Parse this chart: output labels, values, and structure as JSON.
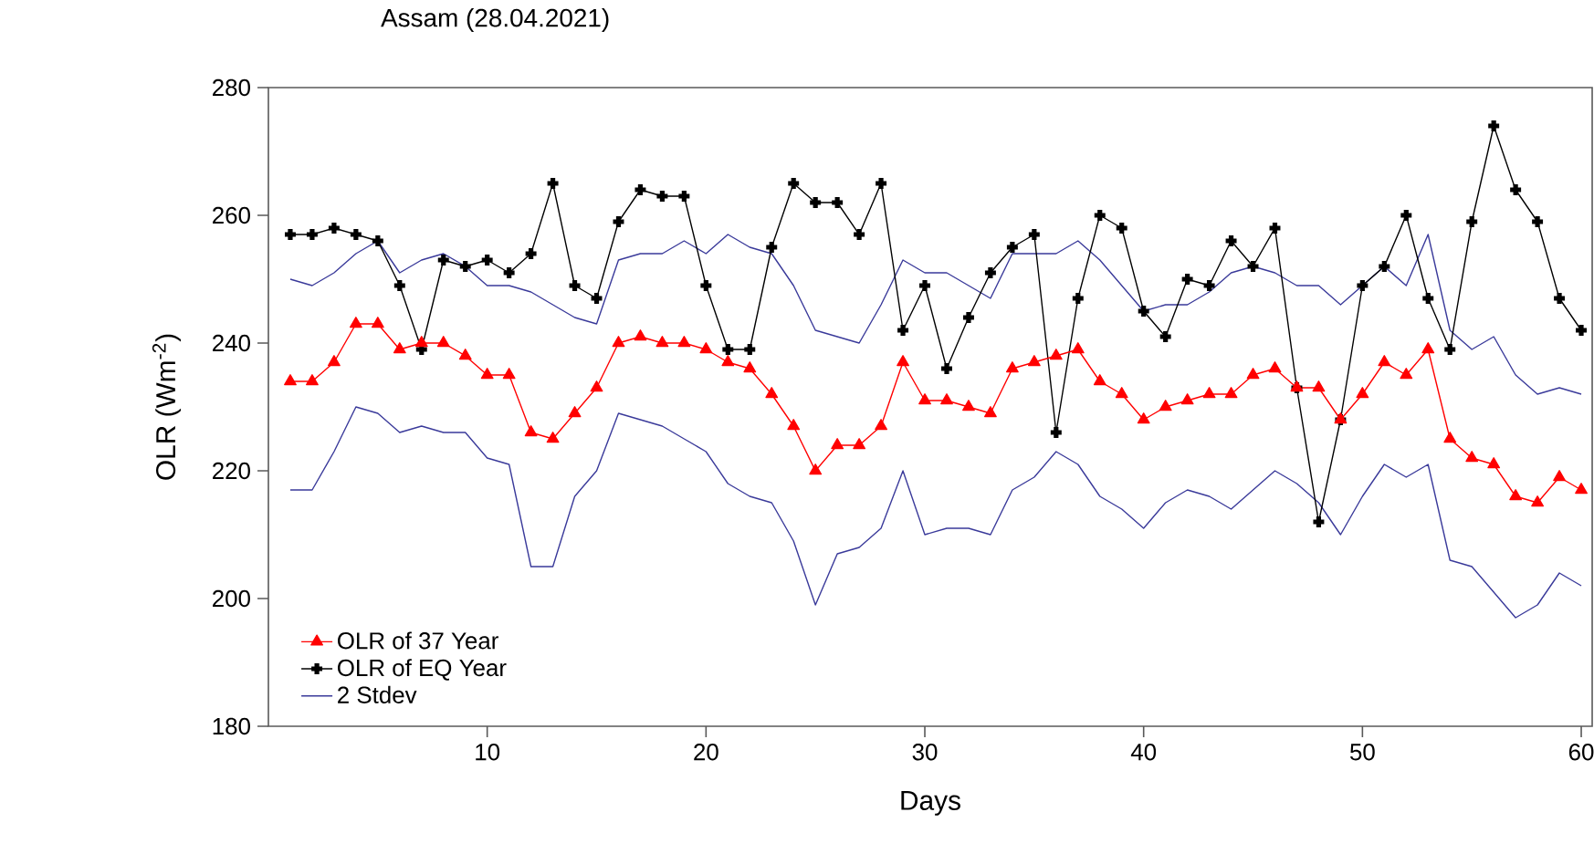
{
  "chart_data": {
    "type": "line",
    "title": "Assam (28.04.2021)",
    "xlabel": "Days",
    "ylabel": "OLR (Wm$^{-2}$)",
    "x": [
      1,
      2,
      3,
      4,
      5,
      6,
      7,
      8,
      9,
      10,
      11,
      12,
      13,
      14,
      15,
      16,
      17,
      18,
      19,
      20,
      21,
      22,
      23,
      24,
      25,
      26,
      27,
      28,
      29,
      30,
      31,
      32,
      33,
      34,
      35,
      36,
      37,
      38,
      39,
      40,
      41,
      42,
      43,
      44,
      45,
      46,
      47,
      48,
      49,
      50,
      51,
      52,
      53,
      54,
      55,
      56,
      57,
      58,
      59,
      60
    ],
    "xlim": [
      0,
      60.5
    ],
    "ylim": [
      180,
      280
    ],
    "xticks": [
      10,
      20,
      30,
      40,
      50,
      60
    ],
    "yticks": [
      180,
      200,
      220,
      240,
      260,
      280
    ],
    "grid": false,
    "legend": "bottom left",
    "series": [
      {
        "name": "OLR of 37 Year",
        "color": "#ff0000",
        "marker": "triangle",
        "values": [
          234,
          234,
          237,
          243,
          243,
          239,
          240,
          240,
          238,
          235,
          235,
          226,
          225,
          229,
          233,
          240,
          241,
          240,
          240,
          239,
          237,
          236,
          232,
          227,
          220,
          224,
          224,
          227,
          237,
          231,
          231,
          230,
          229,
          236,
          237,
          238,
          239,
          234,
          232,
          228,
          230,
          231,
          232,
          232,
          235,
          236,
          233,
          233,
          228,
          232,
          237,
          235,
          239,
          225,
          222,
          221,
          216,
          215,
          219,
          217
        ]
      },
      {
        "name": "OLR of EQ Year",
        "color": "#000000",
        "marker": "cross",
        "values": [
          257,
          257,
          258,
          257,
          256,
          249,
          239,
          253,
          252,
          253,
          251,
          254,
          265,
          249,
          247,
          259,
          264,
          263,
          263,
          249,
          239,
          239,
          255,
          265,
          262,
          262,
          257,
          265,
          242,
          249,
          236,
          244,
          251,
          255,
          257,
          226,
          247,
          260,
          258,
          245,
          241,
          250,
          249,
          256,
          252,
          258,
          233,
          212,
          228,
          249,
          252,
          260,
          247,
          239,
          259,
          274,
          264,
          259,
          247,
          242
        ]
      },
      {
        "name": "2 Stdev",
        "color": "#3a3a9a",
        "marker": "none",
        "values": [
          250,
          249,
          251,
          254,
          256,
          251,
          253,
          254,
          252,
          249,
          249,
          248,
          246,
          244,
          243,
          253,
          254,
          254,
          256,
          254,
          257,
          255,
          254,
          249,
          242,
          241,
          240,
          246,
          253,
          251,
          251,
          249,
          247,
          254,
          254,
          254,
          256,
          253,
          249,
          245,
          246,
          246,
          248,
          251,
          252,
          251,
          249,
          249,
          246,
          249,
          252,
          249,
          257,
          242,
          239,
          241,
          235,
          232,
          233,
          232
        ]
      },
      {
        "color": "#3a3a9a",
        "marker": "none",
        "values": [
          217,
          217,
          223,
          230,
          229,
          226,
          227,
          226,
          226,
          222,
          221,
          205,
          205,
          216,
          220,
          229,
          228,
          227,
          225,
          223,
          218,
          216,
          215,
          209,
          199,
          207,
          208,
          211,
          220,
          210,
          211,
          211,
          210,
          217,
          219,
          223,
          221,
          216,
          214,
          211,
          215,
          217,
          216,
          214,
          217,
          220,
          218,
          215,
          210,
          216,
          221,
          219,
          221,
          206,
          205,
          201,
          197,
          199,
          204,
          202
        ]
      }
    ]
  }
}
